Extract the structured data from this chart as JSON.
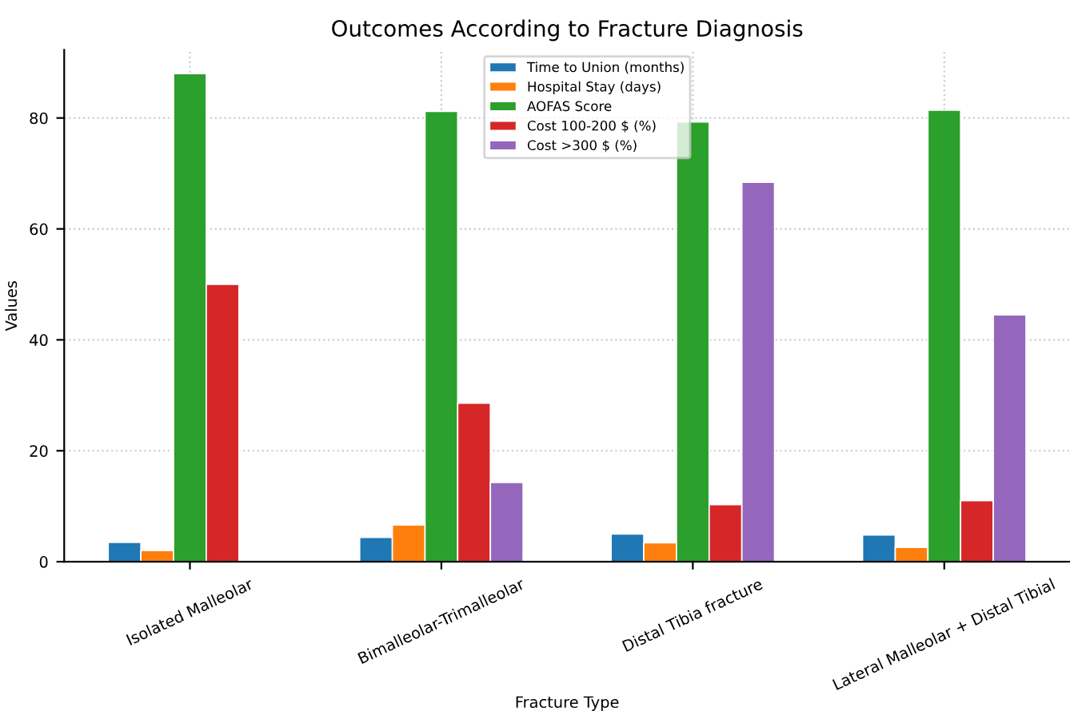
{
  "chart_data": {
    "type": "bar",
    "title": "Outcomes According to Fracture Diagnosis",
    "xlabel": "Fracture Type",
    "ylabel": "Values",
    "categories": [
      "Isolated Malleolar",
      "Bimalleolar-Trimalleolar",
      "Distal Tibia fracture",
      "Lateral Malleolar + Distal Tibial"
    ],
    "series": [
      {
        "name": "Time to Union (months)",
        "color": "#1f77b4",
        "values": [
          3.5,
          4.4,
          5.0,
          4.8
        ]
      },
      {
        "name": "Hospital Stay (days)",
        "color": "#ff7f0e",
        "values": [
          2.0,
          6.6,
          3.4,
          2.6
        ]
      },
      {
        "name": "AOFAS Score",
        "color": "#2ca02c",
        "values": [
          88,
          81.2,
          79.3,
          81.4
        ]
      },
      {
        "name": "Cost 100-200 $ (%)",
        "color": "#d62728",
        "values": [
          50,
          28.6,
          10.3,
          11.0
        ]
      },
      {
        "name": "Cost >300 $ (%)",
        "color": "#9467bd",
        "values": [
          null,
          14.3,
          68.4,
          44.5
        ]
      }
    ],
    "ylim": [
      0,
      92.3
    ],
    "yticks": [
      0,
      20,
      40,
      60,
      80
    ],
    "grid": true,
    "legend": "top"
  }
}
